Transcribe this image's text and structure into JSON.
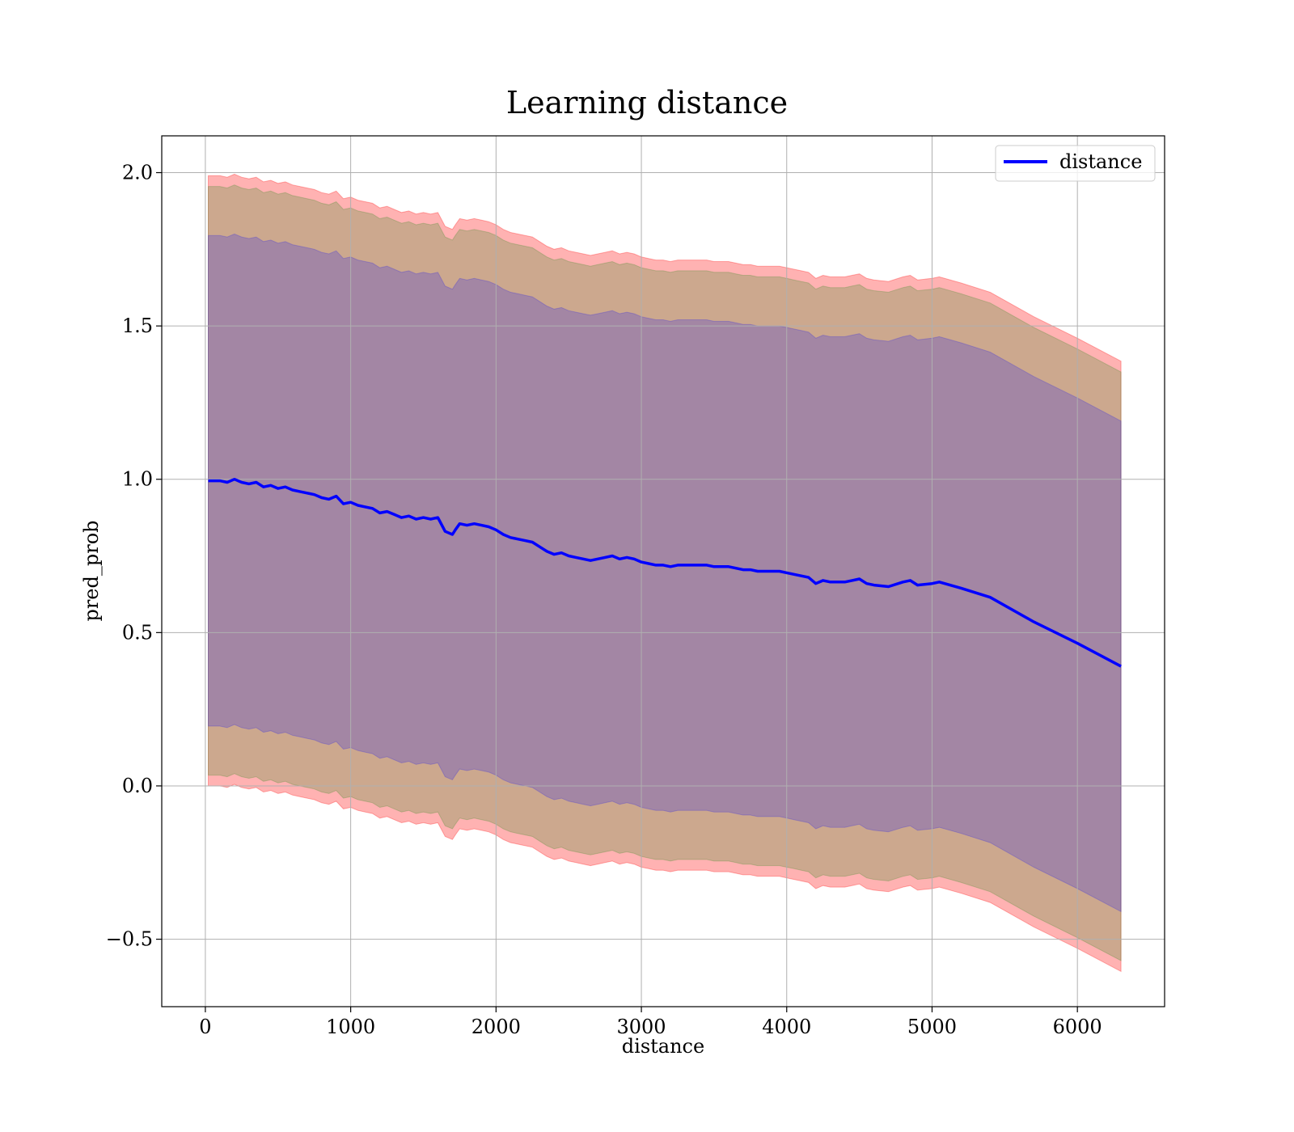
{
  "chart_data": {
    "type": "line",
    "title": "Learning distance",
    "xlabel": "distance",
    "ylabel": "pred_prob",
    "xlim": [
      -300,
      6600
    ],
    "ylim": [
      -0.72,
      2.12
    ],
    "grid": true,
    "legend_position": "top-right",
    "x_ticks": [
      0,
      1000,
      2000,
      3000,
      4000,
      5000,
      6000
    ],
    "y_ticks": [
      -0.5,
      0.0,
      0.5,
      1.0,
      1.5,
      2.0
    ],
    "x_tick_labels": [
      "0",
      "1000",
      "2000",
      "3000",
      "4000",
      "5000",
      "6000"
    ],
    "y_tick_labels": [
      "−0.5",
      "0.0",
      "0.5",
      "1.0",
      "1.5",
      "2.0"
    ],
    "series": [
      {
        "name": "distance",
        "color": "#0000ff",
        "x": [
          20,
          100,
          150,
          200,
          250,
          300,
          350,
          400,
          450,
          500,
          550,
          600,
          650,
          700,
          750,
          800,
          850,
          900,
          950,
          1000,
          1050,
          1100,
          1150,
          1200,
          1250,
          1300,
          1350,
          1400,
          1450,
          1500,
          1550,
          1600,
          1650,
          1700,
          1720,
          1750,
          1800,
          1850,
          1900,
          1950,
          2000,
          2050,
          2100,
          2150,
          2200,
          2250,
          2300,
          2350,
          2400,
          2450,
          2500,
          2550,
          2600,
          2650,
          2700,
          2750,
          2800,
          2850,
          2900,
          2950,
          3000,
          3050,
          3100,
          3150,
          3200,
          3250,
          3300,
          3350,
          3400,
          3450,
          3500,
          3550,
          3600,
          3650,
          3700,
          3750,
          3800,
          3850,
          3900,
          3950,
          4000,
          4050,
          4100,
          4150,
          4200,
          4250,
          4300,
          4350,
          4400,
          4450,
          4500,
          4550,
          4600,
          4700,
          4800,
          4850,
          4900,
          5000,
          5050,
          5200,
          5400,
          5700,
          6000,
          6300
        ],
        "y": [
          0.995,
          0.995,
          0.99,
          1.0,
          0.99,
          0.985,
          0.99,
          0.975,
          0.98,
          0.97,
          0.975,
          0.965,
          0.96,
          0.955,
          0.95,
          0.94,
          0.935,
          0.945,
          0.92,
          0.925,
          0.915,
          0.91,
          0.905,
          0.89,
          0.895,
          0.885,
          0.875,
          0.88,
          0.87,
          0.875,
          0.87,
          0.875,
          0.83,
          0.82,
          0.835,
          0.855,
          0.85,
          0.855,
          0.85,
          0.845,
          0.835,
          0.82,
          0.81,
          0.805,
          0.8,
          0.795,
          0.78,
          0.765,
          0.755,
          0.76,
          0.75,
          0.745,
          0.74,
          0.735,
          0.74,
          0.745,
          0.75,
          0.74,
          0.745,
          0.74,
          0.73,
          0.725,
          0.72,
          0.72,
          0.715,
          0.72,
          0.72,
          0.72,
          0.72,
          0.72,
          0.715,
          0.715,
          0.715,
          0.71,
          0.705,
          0.705,
          0.7,
          0.7,
          0.7,
          0.7,
          0.695,
          0.69,
          0.685,
          0.68,
          0.66,
          0.67,
          0.665,
          0.665,
          0.665,
          0.67,
          0.675,
          0.66,
          0.655,
          0.65,
          0.665,
          0.67,
          0.655,
          0.66,
          0.665,
          0.645,
          0.615,
          0.535,
          0.465,
          0.39
        ]
      }
    ],
    "bands": [
      {
        "name": "band_1",
        "color": "#ff0000",
        "opacity": 0.3,
        "offset": 0.995
      },
      {
        "name": "band_2",
        "color": "#008000",
        "opacity": 0.2,
        "offset": 0.96
      },
      {
        "name": "band_3",
        "color": "#0000ff",
        "opacity": 0.2,
        "offset": 0.8
      }
    ]
  }
}
